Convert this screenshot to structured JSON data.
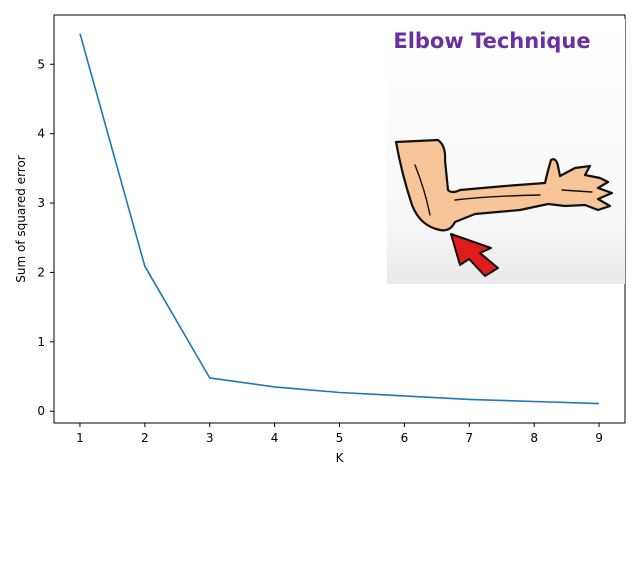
{
  "chart_data": {
    "type": "line",
    "title": "",
    "xlabel": "K",
    "ylabel": "Sum of squared error",
    "x": [
      1,
      2,
      3,
      4,
      5,
      6,
      7,
      8,
      9
    ],
    "series": [
      {
        "values": [
          5.44,
          2.09,
          0.48,
          0.35,
          0.27,
          0.22,
          0.17,
          0.14,
          0.11
        ],
        "color": "#1f77b4"
      }
    ],
    "xticks": [
      "1",
      "2",
      "3",
      "4",
      "5",
      "6",
      "7",
      "8",
      "9"
    ],
    "yticks": [
      "0",
      "1",
      "2",
      "3",
      "4",
      "5"
    ],
    "xlim": [
      0.6,
      9.4
    ],
    "ylim": [
      -0.17,
      5.71
    ],
    "grid": false,
    "legend": "none"
  },
  "inset": {
    "title": "Elbow Technique",
    "title_color": "#6a2fa0",
    "image": "elbow-arm-with-red-arrow",
    "skin_color": "#f7c597",
    "arrow_color": "#e01b1b"
  }
}
